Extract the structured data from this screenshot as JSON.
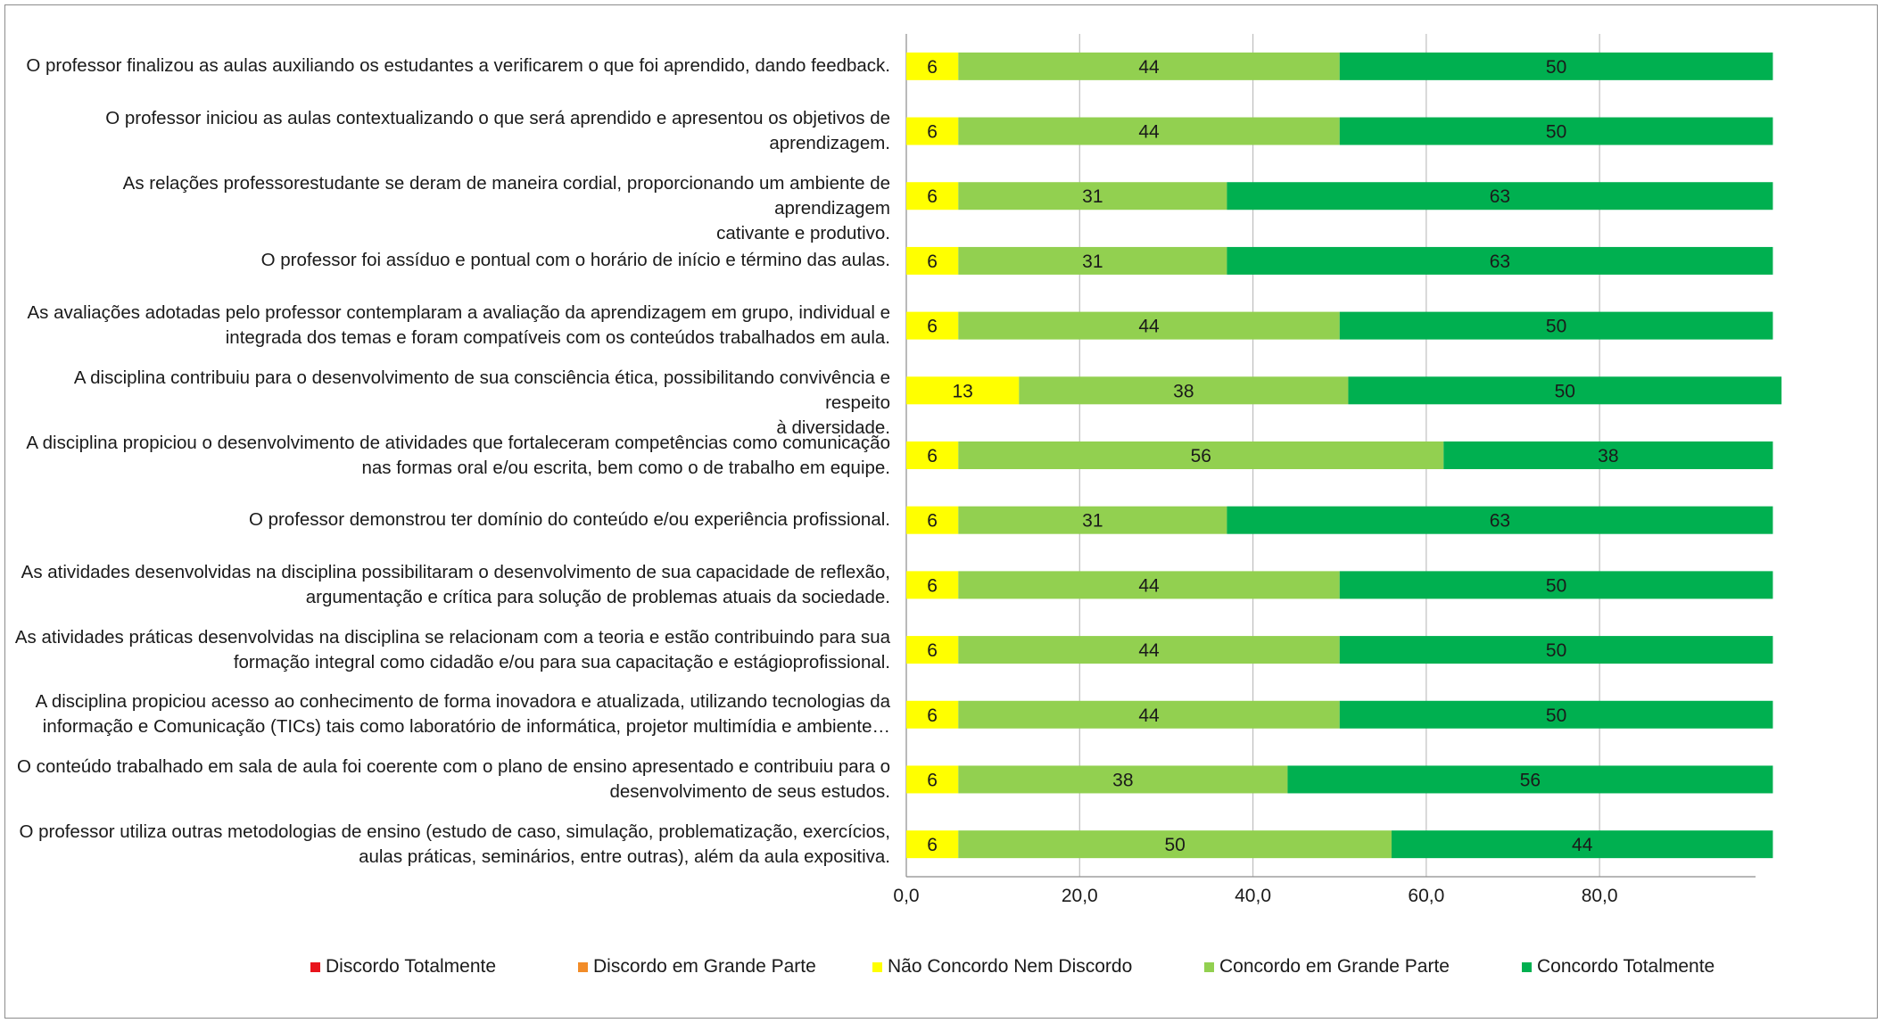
{
  "chart_data": {
    "type": "bar",
    "orientation": "horizontal",
    "stacked": true,
    "categories": [
      "O professor finalizou as aulas auxiliando os estudantes a verificarem o que foi aprendido, dando feedback.",
      "O professor iniciou as aulas contextualizando o que será aprendido e apresentou os objetivos de\naprendizagem.",
      "As relações professorestudante se deram de maneira cordial, proporcionando um ambiente de aprendizagem\ncativante  e produtivo.",
      "O professor foi assíduo e pontual com o horário de início e término das aulas.",
      "As avaliações adotadas pelo professor contemplaram a avaliação da aprendizagem em grupo, individual e\nintegrada dos temas e foram compatíveis com os conteúdos trabalhados em aula.",
      "A disciplina contribuiu para o desenvolvimento de sua consciência ética, possibilitando convivência e respeito\nà diversidade.",
      "A disciplina propiciou o desenvolvimento de atividades que fortaleceram competências como comunicação\nnas formas oral e/ou escrita, bem como o de trabalho em equipe.",
      "O professor demonstrou ter domínio do conteúdo e/ou experiência profissional.",
      "As atividades desenvolvidas na disciplina possibilitaram o desenvolvimento de sua capacidade de reflexão,\nargumentação e crítica para solução de problemas atuais da sociedade.",
      "As atividades práticas desenvolvidas na disciplina se relacionam com a teoria e estão contribuindo para sua\nformação integral como cidadão e/ou para sua capacitação e estágioprofissional.",
      "A disciplina propiciou acesso ao conhecimento de forma inovadora e atualizada, utilizando tecnologias da\ninformação e Comunicação (TICs) tais como laboratório de informática, projetor multimídia e ambiente…",
      "O conteúdo trabalhado em sala de aula foi coerente com o plano de ensino apresentado e contribuiu para o\ndesenvolvimento de seus estudos.",
      "O professor utiliza outras metodologias de ensino (estudo de caso, simulação, problematização, exercícios,\naulas práticas, seminários, entre outras), além da aula expositiva."
    ],
    "series": [
      {
        "name": "Discordo Totalmente",
        "color": "#e8141c",
        "values": [
          0,
          0,
          0,
          0,
          0,
          0,
          0,
          0,
          0,
          0,
          0,
          0,
          0
        ]
      },
      {
        "name": "Discordo em Grande Parte",
        "color": "#f28c28",
        "values": [
          0,
          0,
          0,
          0,
          0,
          0,
          0,
          0,
          0,
          0,
          0,
          0,
          0
        ]
      },
      {
        "name": "Não Concordo Nem Discordo",
        "color": "#ffff00",
        "values": [
          6,
          6,
          6,
          6,
          6,
          13,
          6,
          6,
          6,
          6,
          6,
          6,
          6
        ]
      },
      {
        "name": "Concordo em Grande Parte",
        "color": "#92d050",
        "values": [
          44,
          44,
          31,
          31,
          44,
          38,
          56,
          31,
          44,
          44,
          44,
          38,
          50
        ]
      },
      {
        "name": "Concordo Totalmente",
        "color": "#00b050",
        "values": [
          50,
          50,
          63,
          63,
          50,
          50,
          38,
          63,
          50,
          50,
          50,
          56,
          44
        ]
      }
    ],
    "data_labels": [
      "0",
      "6",
      "44",
      "50",
      "0",
      "6",
      "44",
      "50",
      "0",
      "6",
      "31",
      "63",
      "0",
      "6",
      "31",
      "63",
      "0",
      "6",
      "44",
      "50",
      "0",
      "13",
      "38",
      "50",
      "0",
      "6",
      "56",
      "38",
      "0",
      "6",
      "31",
      "63",
      "0",
      "6",
      "44",
      "50",
      "0",
      "6",
      "44",
      "50",
      "0",
      "6",
      "44",
      "50",
      "0",
      "6",
      "38",
      "56",
      "0",
      "6",
      "50",
      "44"
    ],
    "x_ticks": [
      "0,0",
      "20,0",
      "40,0",
      "60,0",
      "80,0"
    ],
    "xlim": [
      0,
      98
    ],
    "grid": "vertical",
    "legend_position": "bottom",
    "title": "",
    "xlabel": "",
    "ylabel": ""
  }
}
